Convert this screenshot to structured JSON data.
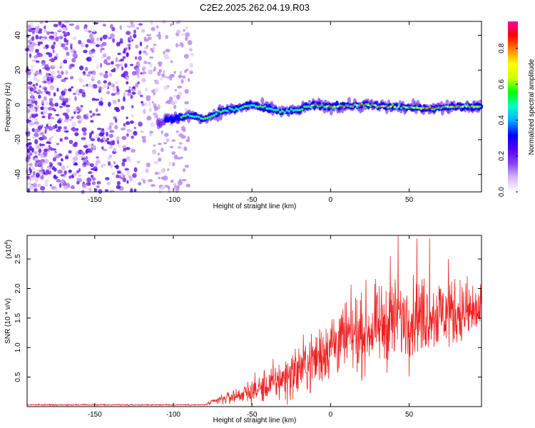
{
  "title": "C2E2.2025.262.04.19.R03",
  "chart_data": [
    {
      "type": "heatmap",
      "xlabel": "Height of straight line (km)",
      "ylabel": "Frequency (Hz)",
      "xlim": [
        -193,
        96
      ],
      "ylim": [
        -50,
        48
      ],
      "x_ticks": [
        -150,
        -100,
        -50,
        0,
        50
      ],
      "y_ticks": [
        -40,
        -20,
        0,
        20,
        40
      ],
      "noise_region": {
        "x_range": [
          -193,
          -88
        ],
        "y_range": [
          -50,
          48
        ]
      },
      "signal_track": [
        {
          "x": -110,
          "freq": -10
        },
        {
          "x": -100,
          "freq": -8
        },
        {
          "x": -90,
          "freq": -6
        },
        {
          "x": -80,
          "freq": -8
        },
        {
          "x": -70,
          "freq": -4
        },
        {
          "x": -60,
          "freq": -2
        },
        {
          "x": -50,
          "freq": 0
        },
        {
          "x": -40,
          "freq": -2
        },
        {
          "x": -30,
          "freq": -4
        },
        {
          "x": -20,
          "freq": -3
        },
        {
          "x": -15,
          "freq": -1
        },
        {
          "x": -10,
          "freq": 0
        },
        {
          "x": 0,
          "freq": -1
        },
        {
          "x": 20,
          "freq": 0
        },
        {
          "x": 40,
          "freq": -1
        },
        {
          "x": 60,
          "freq": -2
        },
        {
          "x": 80,
          "freq": -1
        },
        {
          "x": 96,
          "freq": -1
        }
      ]
    },
    {
      "type": "line",
      "xlabel": "Height of straight line (km)",
      "ylabel": "SNR (10 * v/v)",
      "y_scale_note": "(x10",
      "y_scale_exp": "4",
      "xlim": [
        -193,
        96
      ],
      "ylim": [
        0,
        2.9
      ],
      "x_ticks": [
        -150,
        -100,
        -50,
        0,
        50
      ],
      "y_ticks": [
        0.5,
        1.0,
        1.5,
        2.0,
        2.5
      ],
      "color": "#ee2222",
      "envelope": [
        {
          "x": -193,
          "mean": 0.03,
          "spread": 0.01
        },
        {
          "x": -80,
          "mean": 0.03,
          "spread": 0.01
        },
        {
          "x": -70,
          "mean": 0.12,
          "spread": 0.08
        },
        {
          "x": -55,
          "mean": 0.22,
          "spread": 0.15
        },
        {
          "x": -40,
          "mean": 0.35,
          "spread": 0.28
        },
        {
          "x": -25,
          "mean": 0.55,
          "spread": 0.4
        },
        {
          "x": -10,
          "mean": 0.8,
          "spread": 0.5
        },
        {
          "x": 0,
          "mean": 1.05,
          "spread": 0.55
        },
        {
          "x": 20,
          "mean": 1.25,
          "spread": 0.6
        },
        {
          "x": 40,
          "mean": 1.45,
          "spread": 0.65
        },
        {
          "x": 60,
          "mean": 1.55,
          "spread": 0.6
        },
        {
          "x": 80,
          "mean": 1.6,
          "spread": 0.55
        },
        {
          "x": 96,
          "mean": 1.6,
          "spread": 0.5
        }
      ],
      "peaks": [
        {
          "x": 43,
          "y": 2.95
        },
        {
          "x": 55,
          "y": 2.85
        },
        {
          "x": 63,
          "y": 2.85
        },
        {
          "x": 38,
          "y": 2.55
        },
        {
          "x": 75,
          "y": 2.5
        }
      ]
    },
    {
      "type": "colorbar",
      "label": "Normalized spectral amplitude",
      "range": [
        0,
        0.95
      ],
      "ticks": [
        "0.0",
        "0.2",
        "0.4",
        "0.6",
        "0.8"
      ],
      "tick_values": [
        0,
        0.2,
        0.4,
        0.6,
        0.8
      ],
      "colors": [
        "#ffffff",
        "#d8b8f8",
        "#8844ee",
        "#5500ff",
        "#0000ff",
        "#00aaff",
        "#00ffcc",
        "#00ff00",
        "#ccff00",
        "#ffff00",
        "#ff8800",
        "#ff0000",
        "#ff00aa"
      ]
    }
  ]
}
